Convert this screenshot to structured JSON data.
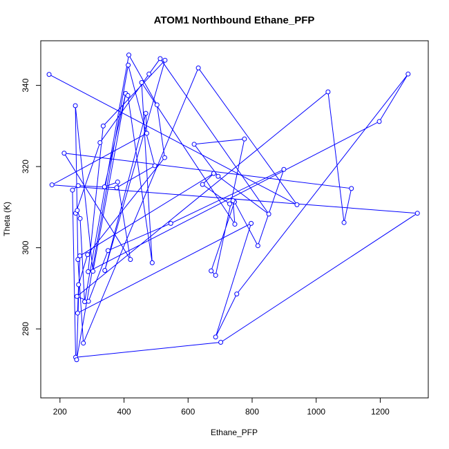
{
  "chart_data": {
    "type": "scatter",
    "title": "ATOM1 Northbound Ethane_PFP",
    "xlabel": "Ethane_PFP",
    "ylabel": "Theta (K)",
    "xlim": [
      140,
      1350
    ],
    "ylim": [
      263,
      351
    ],
    "xticks": [
      200,
      400,
      600,
      800,
      1000,
      1200
    ],
    "yticks": [
      280,
      300,
      320,
      340
    ],
    "grid": false,
    "legend": "none",
    "connect_points": true,
    "colors": {
      "series": "#0000ff",
      "axes": "#000000",
      "background": "#ffffff"
    },
    "series": [
      {
        "x": [
          166,
          940,
          632,
          273,
          256,
          248,
          303,
          405,
          339,
          380,
          420,
          213,
          1110,
          1087,
          1037,
          253,
          289,
          350,
          546,
          899,
          818,
          745,
          672,
          686,
          776,
          619,
          694,
          852,
          513,
          478,
          325,
          249,
          254,
          263,
          277,
          415,
          503,
          527,
          286,
          258,
          255,
          797,
          686,
          752,
          1287,
          1197,
          288,
          335,
          528,
          340,
          468,
          471,
          175,
          1316,
          702,
          249,
          239,
          257,
          377,
          496,
          413,
          252,
          262,
          680,
          645,
          730,
          740,
          746,
          455,
          488,
          412
        ],
        "y": [
          342.7,
          310.6,
          344.3,
          276.5,
          297.1,
          335.0,
          294.2,
          338.0,
          315.0,
          316.2,
          297.1,
          323.3,
          314.6,
          306.2,
          338.4,
          288.0,
          286.8,
          299.3,
          306.0,
          319.3,
          300.5,
          311.3,
          294.3,
          293.2,
          326.8,
          325.5,
          317.6,
          308.3,
          346.6,
          342.8,
          325.9,
          308.5,
          309.2,
          307.2,
          286.7,
          347.5,
          335.2,
          322.2,
          298.3,
          290.9,
          283.9,
          306.0,
          278.0,
          288.6,
          342.8,
          331.1,
          294.1,
          330.0,
          346.2,
          294.4,
          333.1,
          328.2,
          315.5,
          308.5,
          276.7,
          273.0,
          314.2,
          315.3,
          314.8,
          320.2,
          345.0,
          272.4,
          298.0,
          318.3,
          315.6,
          310.8,
          311.6,
          305.8,
          340.7,
          296.3,
          337.5
        ]
      }
    ]
  }
}
